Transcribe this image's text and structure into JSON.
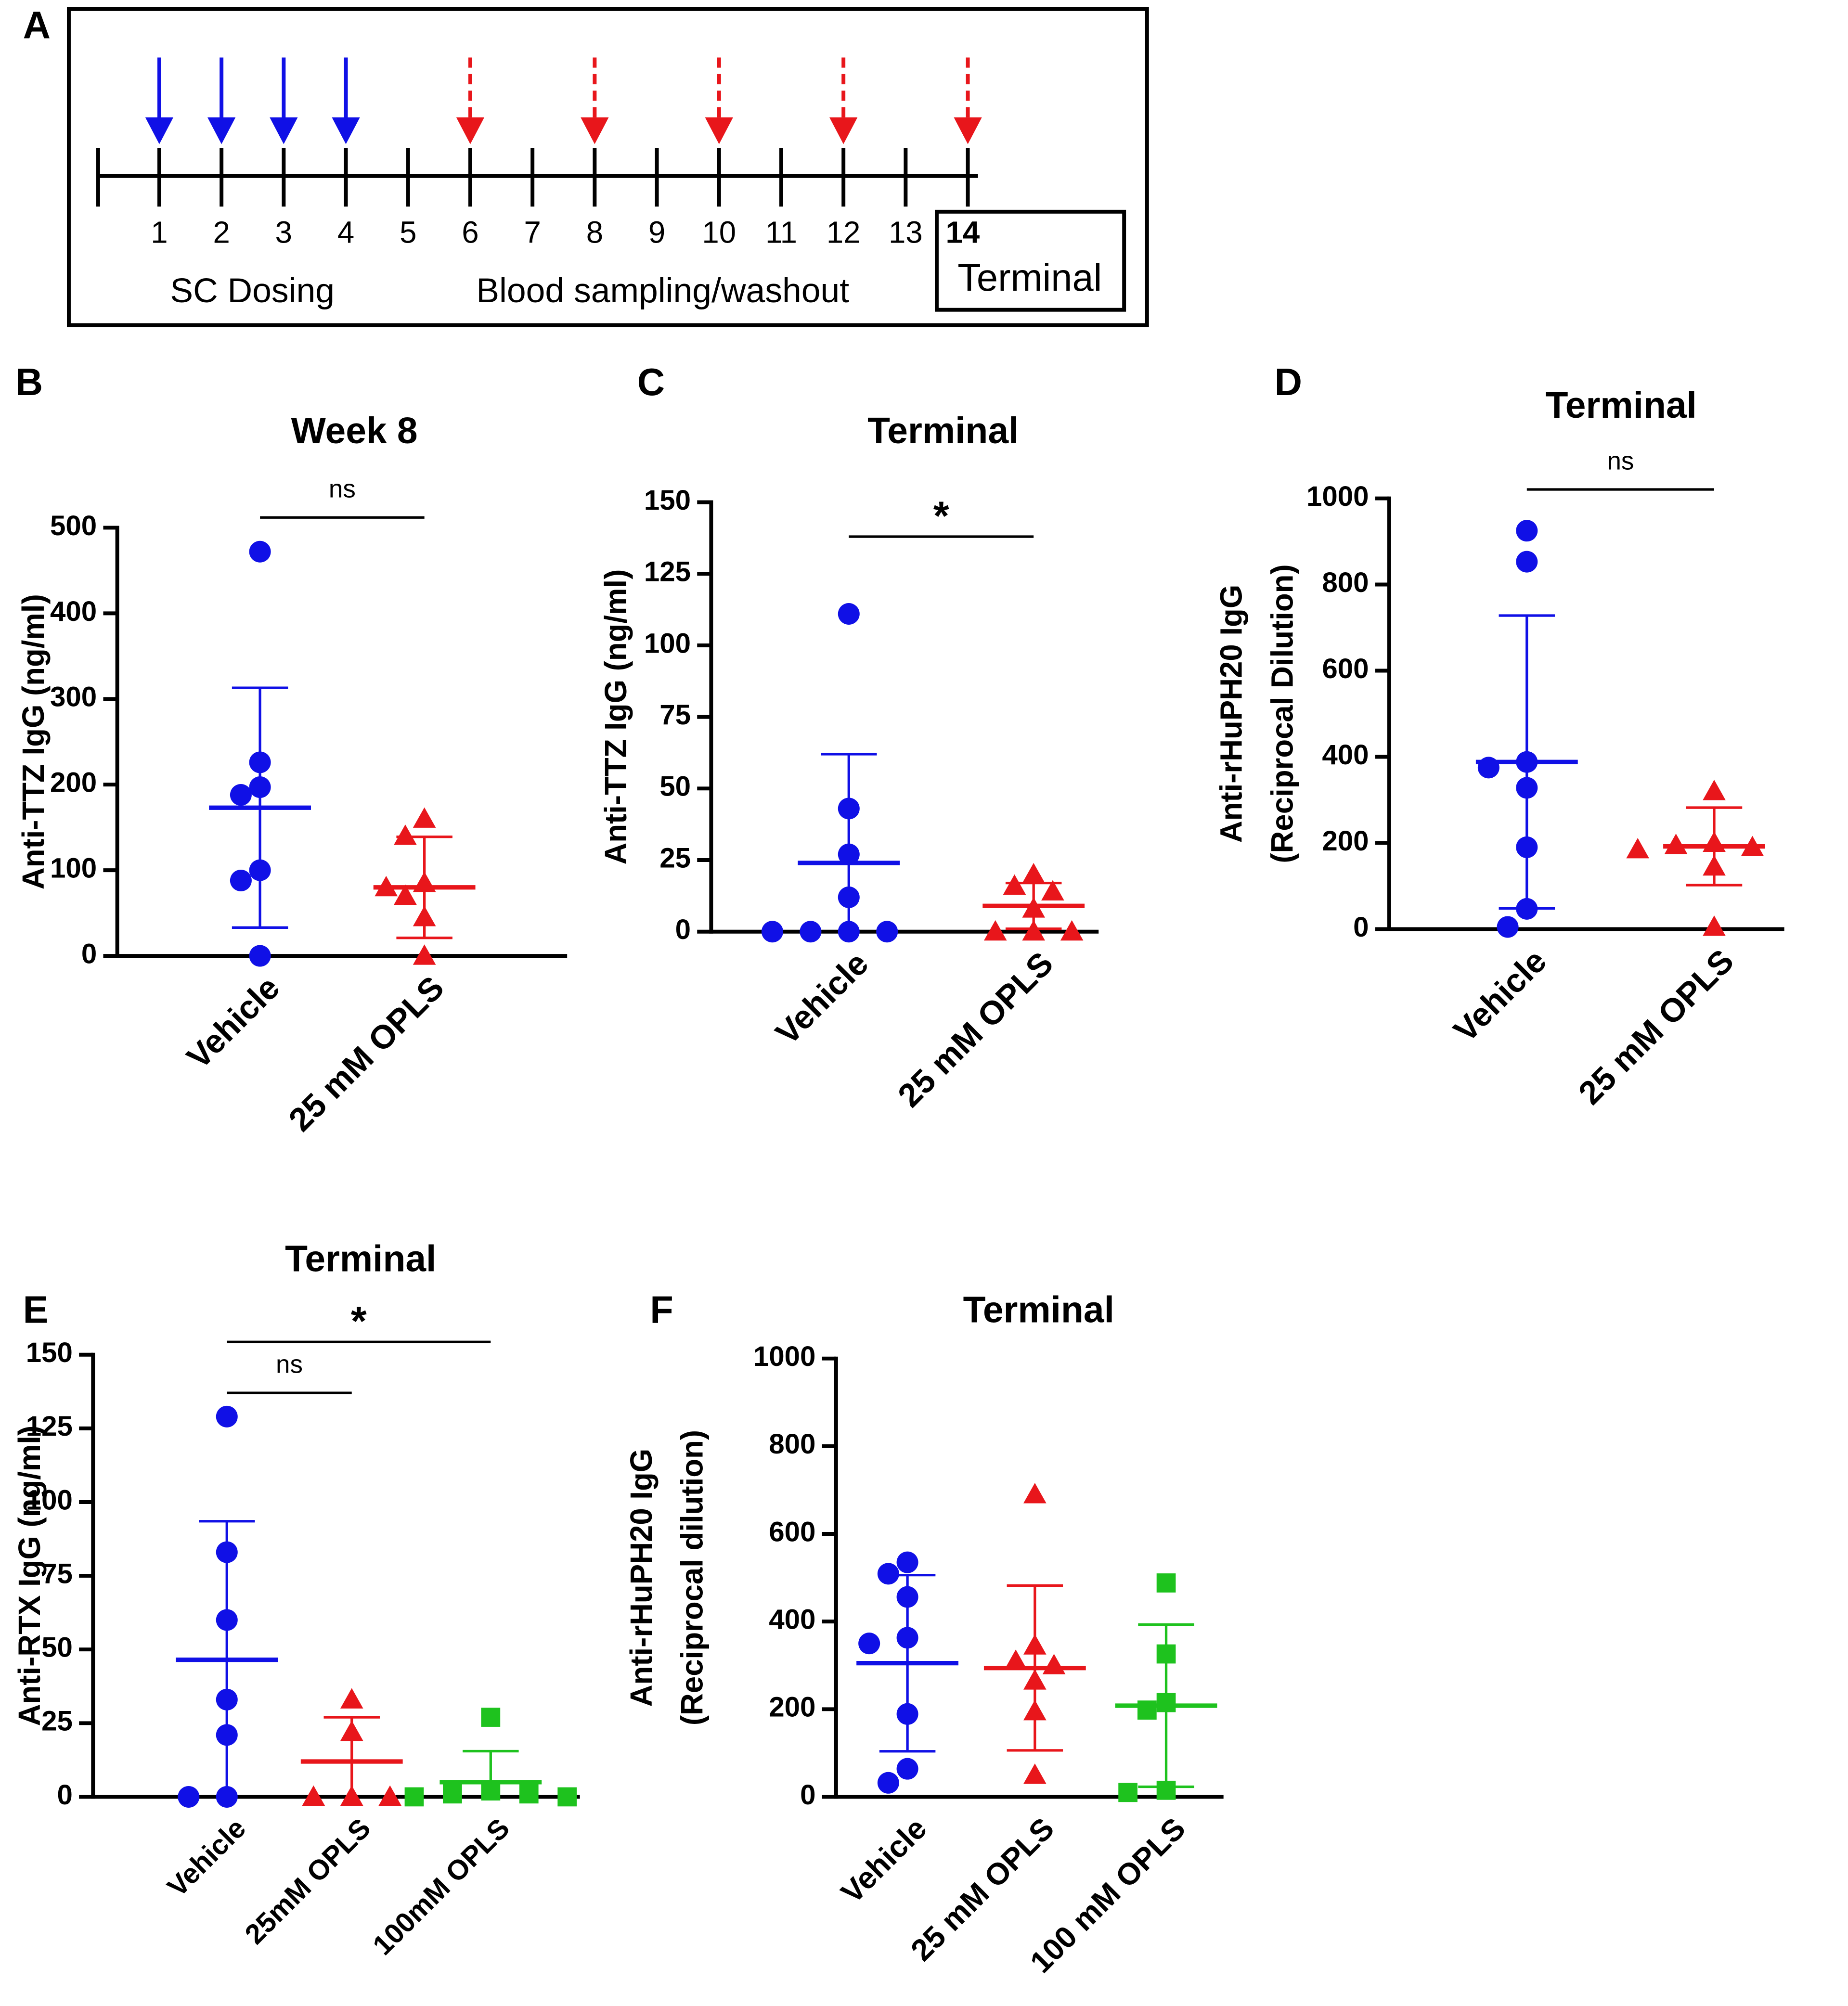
{
  "chart_data": [
    {
      "panel": "A",
      "type": "timeline",
      "weeks": [
        1,
        2,
        3,
        4,
        5,
        6,
        7,
        8,
        9,
        10,
        11,
        12,
        13,
        14
      ],
      "dosing_weeks": [
        1,
        2,
        3,
        4
      ],
      "sampling_weeks": [
        6,
        8,
        10,
        12,
        14
      ],
      "dosing_label": "SC Dosing",
      "sampling_label": "Blood sampling/washout",
      "terminal_label": "Terminal",
      "dosing_color": "#1010e6",
      "sampling_color": "#e8161b"
    },
    {
      "panel": "B",
      "type": "dot",
      "title": "Week 8",
      "ylabel": [
        "Anti-TTZ IgG (ng/ml)"
      ],
      "ylim": [
        0,
        500
      ],
      "yticks": [
        0,
        100,
        200,
        300,
        400,
        500
      ],
      "series": [
        {
          "name": "Vehicle",
          "color": "#1010e6",
          "marker": "circle",
          "values": [
            472,
            226,
            197,
            188,
            100,
            88,
            0
          ],
          "mean": 173,
          "sd": 140
        },
        {
          "name": "25 mM OPLS",
          "color": "#e8161b",
          "marker": "triangle",
          "values": [
            160,
            140,
            85,
            80,
            70,
            45,
            0
          ],
          "mean": 80,
          "sd": 59
        }
      ],
      "comparisons": [
        {
          "groups": [
            "Vehicle",
            "25 mM OPLS"
          ],
          "label": "ns"
        }
      ]
    },
    {
      "panel": "C",
      "type": "dot",
      "title": "Terminal",
      "ylabel": [
        "Anti-TTZ IgG (ng/ml)"
      ],
      "ylim": [
        0,
        150
      ],
      "yticks": [
        0,
        25,
        50,
        75,
        100,
        125,
        150
      ],
      "series": [
        {
          "name": "Vehicle",
          "color": "#1010e6",
          "marker": "circle",
          "values": [
            111,
            43,
            27,
            12,
            0,
            0,
            0,
            0
          ],
          "mean": 24,
          "sd": 38
        },
        {
          "name": "25 mM OPLS",
          "color": "#e8161b",
          "marker": "triangle",
          "values": [
            20,
            16,
            14,
            8,
            0,
            0,
            0
          ],
          "mean": 9,
          "sd": 8
        }
      ],
      "comparisons": [
        {
          "groups": [
            "Vehicle",
            "25 mM OPLS"
          ],
          "label": "*"
        }
      ]
    },
    {
      "panel": "D",
      "type": "dot",
      "title": "Terminal",
      "ylabel": [
        "Anti-rHuPH20 IgG",
        "(Reciprocal Dilution)"
      ],
      "ylim": [
        0,
        1000
      ],
      "yticks": [
        0,
        200,
        400,
        600,
        800,
        1000
      ],
      "series": [
        {
          "name": "Vehicle",
          "color": "#1010e6",
          "marker": "circle",
          "values": [
            925,
            853,
            388,
            375,
            328,
            190,
            47,
            5
          ],
          "mean": 388,
          "sd": 340
        },
        {
          "name": "25 mM OPLS",
          "color": "#e8161b",
          "marker": "triangle",
          "values": [
            320,
            200,
            195,
            190,
            185,
            145,
            5
          ],
          "mean": 192,
          "sd": 90
        }
      ],
      "comparisons": [
        {
          "groups": [
            "Vehicle",
            "25 mM OPLS"
          ],
          "label": "ns"
        }
      ]
    },
    {
      "panel": "E",
      "type": "dot",
      "title": "Terminal",
      "ylabel": [
        "Anti-RTX IgG (ng/ml)"
      ],
      "ylim": [
        0,
        150
      ],
      "yticks": [
        0,
        25,
        50,
        75,
        100,
        125,
        150
      ],
      "series": [
        {
          "name": "Vehicle",
          "color": "#1010e6",
          "marker": "circle",
          "values": [
            129,
            83,
            60,
            33,
            21,
            0,
            0
          ],
          "mean": 46.5,
          "sd": 47
        },
        {
          "name": "25mM OPLS",
          "color": "#e8161b",
          "marker": "triangle",
          "values": [
            33,
            22,
            0,
            0,
            0
          ],
          "mean": 12,
          "sd": 15
        },
        {
          "name": "100mM OPLS",
          "color": "#1ec21e",
          "marker": "square",
          "values": [
            27,
            2,
            1,
            1,
            0,
            0
          ],
          "mean": 5,
          "sd": 10.5
        }
      ],
      "comparisons": [
        {
          "groups": [
            "Vehicle",
            "25mM OPLS"
          ],
          "label": "ns"
        },
        {
          "groups": [
            "Vehicle",
            "100mM OPLS"
          ],
          "label": "*"
        }
      ]
    },
    {
      "panel": "F",
      "type": "dot",
      "title": "Terminal",
      "ylabel": [
        "Anti-rHuPH20 IgG",
        "(Reciprocal dilution)"
      ],
      "ylim": [
        0,
        1000
      ],
      "yticks": [
        0,
        200,
        400,
        600,
        800,
        1000
      ],
      "series": [
        {
          "name": "Vehicle",
          "color": "#1010e6",
          "marker": "circle",
          "values": [
            535,
            509,
            456,
            363,
            350,
            189,
            64,
            32
          ],
          "mean": 305,
          "sd": 201
        },
        {
          "name": "25 mM OPLS",
          "color": "#e8161b",
          "marker": "triangle",
          "values": [
            690,
            345,
            310,
            300,
            265,
            195,
            50
          ],
          "mean": 294,
          "sd": 188
        },
        {
          "name": "100 mM OPLS",
          "color": "#1ec21e",
          "marker": "square",
          "values": [
            488,
            326,
            215,
            198,
            15,
            10
          ],
          "mean": 208,
          "sd": 185
        }
      ],
      "comparisons": []
    }
  ]
}
